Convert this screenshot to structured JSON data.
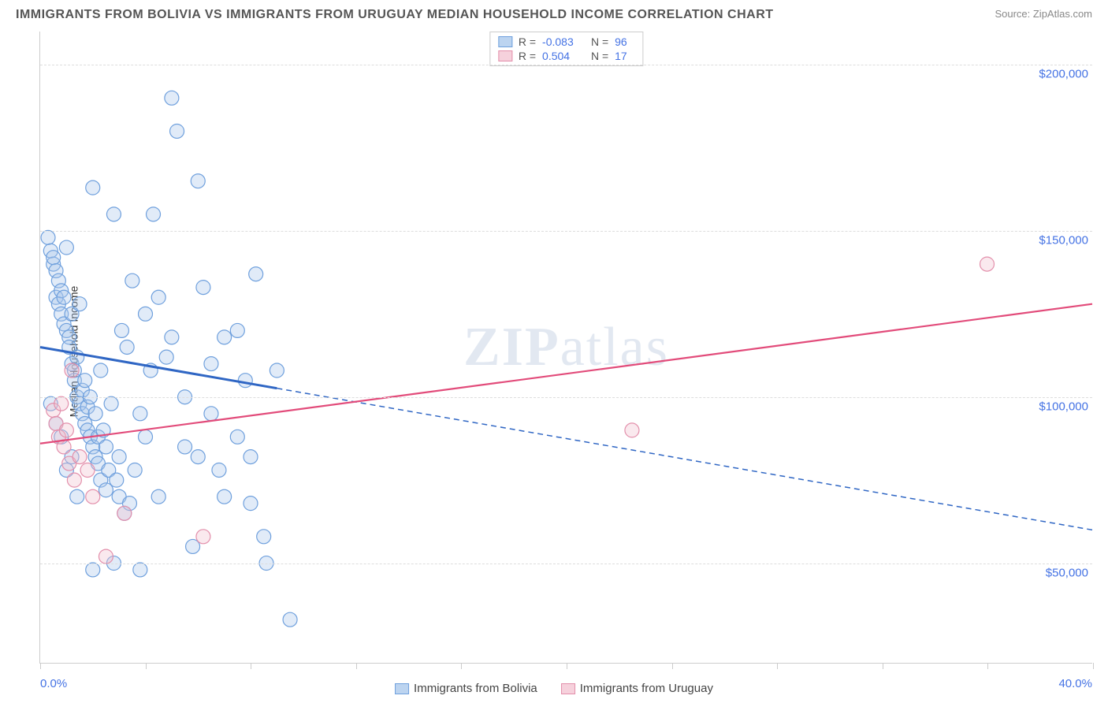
{
  "title": "IMMIGRANTS FROM BOLIVIA VS IMMIGRANTS FROM URUGUAY MEDIAN HOUSEHOLD INCOME CORRELATION CHART",
  "source": "Source: ZipAtlas.com",
  "watermark_a": "ZIP",
  "watermark_b": "atlas",
  "ylabel": "Median Household Income",
  "chart": {
    "type": "scatter",
    "xlim": [
      0,
      40
    ],
    "ylim": [
      20000,
      210000
    ],
    "x_tick_positions": [
      0,
      4,
      8,
      12,
      16,
      20,
      24,
      28,
      32,
      36,
      40
    ],
    "x_tick_labels_shown": {
      "0": "0.0%",
      "40": "40.0%"
    },
    "y_gridlines": [
      50000,
      100000,
      150000,
      200000
    ],
    "y_tick_labels": {
      "50000": "$50,000",
      "100000": "$100,000",
      "150000": "$150,000",
      "200000": "$200,000"
    },
    "background_color": "#ffffff",
    "grid_color": "#dddddd",
    "axis_color": "#cccccc",
    "marker_radius": 9,
    "marker_fill_opacity": 0.35,
    "marker_stroke_width": 1.2,
    "series": [
      {
        "name": "Immigrants from Bolivia",
        "color_fill": "#a8c5ec",
        "color_stroke": "#6fa0dd",
        "swatch_fill": "#bcd4f0",
        "swatch_border": "#6fa0dd",
        "R": "-0.083",
        "N": "96",
        "regression": {
          "x1": 0,
          "y1": 115000,
          "x2": 40,
          "y2": 60000,
          "solid_until_x": 9,
          "color": "#2f66c4",
          "width_solid": 3,
          "width_dash": 1.5,
          "dash": "7,5"
        },
        "points": [
          [
            0.3,
            148000
          ],
          [
            0.4,
            144000
          ],
          [
            0.5,
            140000
          ],
          [
            0.5,
            142000
          ],
          [
            0.6,
            138000
          ],
          [
            0.6,
            130000
          ],
          [
            0.7,
            135000
          ],
          [
            0.7,
            128000
          ],
          [
            0.8,
            132000
          ],
          [
            0.8,
            125000
          ],
          [
            0.9,
            130000
          ],
          [
            0.9,
            122000
          ],
          [
            1.0,
            145000
          ],
          [
            1.0,
            120000
          ],
          [
            1.1,
            118000
          ],
          [
            1.1,
            115000
          ],
          [
            1.2,
            125000
          ],
          [
            1.2,
            110000
          ],
          [
            1.3,
            108000
          ],
          [
            1.3,
            105000
          ],
          [
            1.4,
            112000
          ],
          [
            1.4,
            100000
          ],
          [
            1.5,
            128000
          ],
          [
            1.5,
            98000
          ],
          [
            1.6,
            102000
          ],
          [
            1.6,
            95000
          ],
          [
            1.7,
            105000
          ],
          [
            1.7,
            92000
          ],
          [
            1.8,
            97000
          ],
          [
            1.8,
            90000
          ],
          [
            1.9,
            100000
          ],
          [
            1.9,
            88000
          ],
          [
            2.0,
            163000
          ],
          [
            2.0,
            85000
          ],
          [
            2.1,
            95000
          ],
          [
            2.1,
            82000
          ],
          [
            2.2,
            88000
          ],
          [
            2.2,
            80000
          ],
          [
            2.3,
            108000
          ],
          [
            2.3,
            75000
          ],
          [
            2.4,
            90000
          ],
          [
            2.5,
            85000
          ],
          [
            2.5,
            72000
          ],
          [
            2.6,
            78000
          ],
          [
            2.7,
            98000
          ],
          [
            2.8,
            50000
          ],
          [
            2.8,
            155000
          ],
          [
            2.9,
            75000
          ],
          [
            3.0,
            82000
          ],
          [
            3.0,
            70000
          ],
          [
            3.1,
            120000
          ],
          [
            3.2,
            65000
          ],
          [
            3.3,
            115000
          ],
          [
            3.4,
            68000
          ],
          [
            3.5,
            135000
          ],
          [
            3.6,
            78000
          ],
          [
            3.8,
            48000
          ],
          [
            3.8,
            95000
          ],
          [
            4.0,
            125000
          ],
          [
            4.0,
            88000
          ],
          [
            4.2,
            108000
          ],
          [
            4.3,
            155000
          ],
          [
            4.5,
            70000
          ],
          [
            4.5,
            130000
          ],
          [
            4.8,
            112000
          ],
          [
            5.0,
            118000
          ],
          [
            5.0,
            190000
          ],
          [
            5.2,
            180000
          ],
          [
            5.5,
            100000
          ],
          [
            5.5,
            85000
          ],
          [
            5.8,
            55000
          ],
          [
            6.0,
            82000
          ],
          [
            6.0,
            165000
          ],
          [
            6.2,
            133000
          ],
          [
            6.5,
            95000
          ],
          [
            6.5,
            110000
          ],
          [
            6.8,
            78000
          ],
          [
            7.0,
            118000
          ],
          [
            7.0,
            70000
          ],
          [
            7.5,
            120000
          ],
          [
            7.5,
            88000
          ],
          [
            7.8,
            105000
          ],
          [
            8.0,
            82000
          ],
          [
            8.0,
            68000
          ],
          [
            8.2,
            137000
          ],
          [
            8.5,
            58000
          ],
          [
            8.6,
            50000
          ],
          [
            9.0,
            108000
          ],
          [
            9.5,
            33000
          ],
          [
            0.4,
            98000
          ],
          [
            0.6,
            92000
          ],
          [
            0.8,
            88000
          ],
          [
            1.0,
            78000
          ],
          [
            1.2,
            82000
          ],
          [
            1.4,
            70000
          ],
          [
            2.0,
            48000
          ]
        ]
      },
      {
        "name": "Immigrants from Uruguay",
        "color_fill": "#f2c0cf",
        "color_stroke": "#e38fab",
        "swatch_fill": "#f6d1dc",
        "swatch_border": "#e38fab",
        "R": "0.504",
        "N": "17",
        "regression": {
          "x1": 0,
          "y1": 86000,
          "x2": 40,
          "y2": 128000,
          "solid_until_x": 40,
          "color": "#e24b7a",
          "width_solid": 2.2,
          "width_dash": 1.5,
          "dash": "6,4"
        },
        "points": [
          [
            0.5,
            96000
          ],
          [
            0.6,
            92000
          ],
          [
            0.7,
            88000
          ],
          [
            0.8,
            98000
          ],
          [
            0.9,
            85000
          ],
          [
            1.0,
            90000
          ],
          [
            1.1,
            80000
          ],
          [
            1.2,
            108000
          ],
          [
            1.3,
            75000
          ],
          [
            1.5,
            82000
          ],
          [
            1.8,
            78000
          ],
          [
            2.0,
            70000
          ],
          [
            2.5,
            52000
          ],
          [
            3.2,
            65000
          ],
          [
            6.2,
            58000
          ],
          [
            22.5,
            90000
          ],
          [
            36.0,
            140000
          ]
        ]
      }
    ]
  },
  "bottom_legend": [
    {
      "label": "Immigrants from Bolivia",
      "fill": "#bcd4f0",
      "border": "#6fa0dd"
    },
    {
      "label": "Immigrants from Uruguay",
      "fill": "#f6d1dc",
      "border": "#e38fab"
    }
  ]
}
